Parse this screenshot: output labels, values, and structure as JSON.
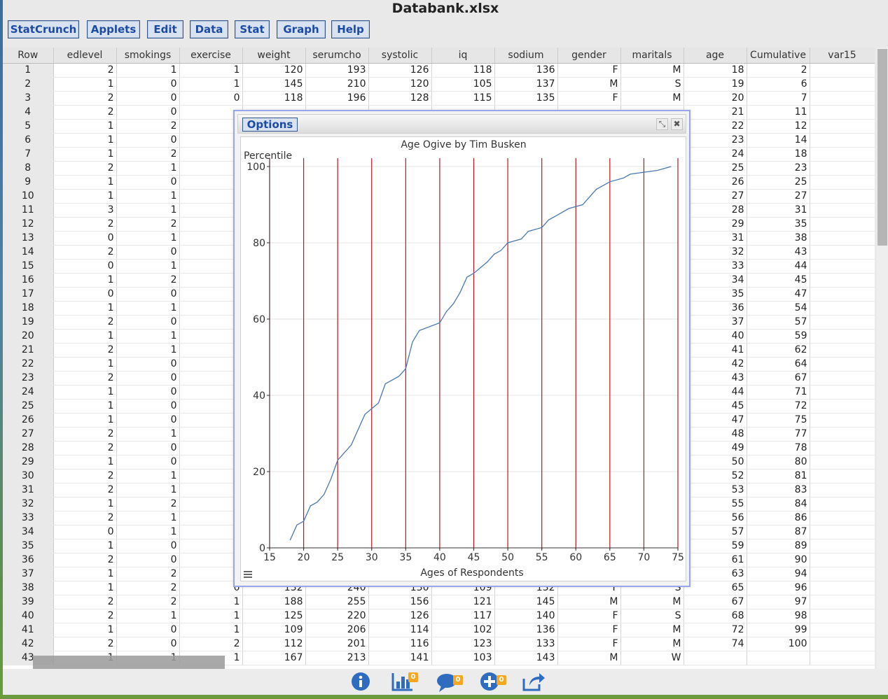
{
  "window": {
    "title": "Databank.xlsx"
  },
  "menu": [
    "StatCrunch",
    "Applets",
    "Edit",
    "Data",
    "Stat",
    "Graph",
    "Help"
  ],
  "columns": [
    "Row",
    "edlevel",
    "smokings",
    "exercise",
    "weight",
    "serumcho",
    "systolic",
    "iq",
    "sodium",
    "gender",
    "maritals",
    "age",
    "Cumulative",
    "var15"
  ],
  "rows": [
    [
      "1",
      "2",
      "1",
      "1",
      "120",
      "193",
      "126",
      "118",
      "136",
      "F",
      "M",
      "18",
      "2",
      ""
    ],
    [
      "2",
      "1",
      "0",
      "1",
      "145",
      "210",
      "120",
      "105",
      "137",
      "M",
      "S",
      "19",
      "6",
      ""
    ],
    [
      "3",
      "2",
      "0",
      "0",
      "118",
      "196",
      "128",
      "115",
      "135",
      "F",
      "M",
      "20",
      "7",
      ""
    ],
    [
      "4",
      "2",
      "0",
      "",
      "",
      "",
      "",
      "",
      "",
      "",
      "",
      "21",
      "11",
      ""
    ],
    [
      "5",
      "1",
      "2",
      "",
      "",
      "",
      "",
      "",
      "",
      "",
      "",
      "22",
      "12",
      ""
    ],
    [
      "6",
      "1",
      "0",
      "",
      "",
      "",
      "",
      "",
      "",
      "",
      "",
      "23",
      "14",
      ""
    ],
    [
      "7",
      "1",
      "2",
      "",
      "",
      "",
      "",
      "",
      "",
      "",
      "",
      "24",
      "18",
      ""
    ],
    [
      "8",
      "2",
      "1",
      "",
      "",
      "",
      "",
      "",
      "",
      "",
      "",
      "25",
      "23",
      ""
    ],
    [
      "9",
      "1",
      "0",
      "",
      "",
      "",
      "",
      "",
      "",
      "",
      "",
      "26",
      "25",
      ""
    ],
    [
      "10",
      "1",
      "1",
      "",
      "",
      "",
      "",
      "",
      "",
      "",
      "",
      "27",
      "27",
      ""
    ],
    [
      "11",
      "3",
      "1",
      "",
      "",
      "",
      "",
      "",
      "",
      "",
      "",
      "28",
      "31",
      ""
    ],
    [
      "12",
      "2",
      "2",
      "",
      "",
      "",
      "",
      "",
      "",
      "",
      "",
      "29",
      "35",
      ""
    ],
    [
      "13",
      "0",
      "1",
      "",
      "",
      "",
      "",
      "",
      "",
      "",
      "",
      "31",
      "38",
      ""
    ],
    [
      "14",
      "2",
      "0",
      "",
      "",
      "",
      "",
      "",
      "",
      "",
      "",
      "32",
      "43",
      ""
    ],
    [
      "15",
      "0",
      "1",
      "",
      "",
      "",
      "",
      "",
      "",
      "",
      "",
      "33",
      "44",
      ""
    ],
    [
      "16",
      "1",
      "2",
      "",
      "",
      "",
      "",
      "",
      "",
      "",
      "",
      "34",
      "45",
      ""
    ],
    [
      "17",
      "0",
      "0",
      "",
      "",
      "",
      "",
      "",
      "",
      "",
      "",
      "35",
      "47",
      ""
    ],
    [
      "18",
      "1",
      "1",
      "",
      "",
      "",
      "",
      "",
      "",
      "",
      "",
      "36",
      "54",
      ""
    ],
    [
      "19",
      "2",
      "0",
      "",
      "",
      "",
      "",
      "",
      "",
      "",
      "",
      "37",
      "57",
      ""
    ],
    [
      "20",
      "1",
      "1",
      "",
      "",
      "",
      "",
      "",
      "",
      "",
      "",
      "40",
      "59",
      ""
    ],
    [
      "21",
      "2",
      "1",
      "",
      "",
      "",
      "",
      "",
      "",
      "",
      "",
      "41",
      "62",
      ""
    ],
    [
      "22",
      "1",
      "0",
      "",
      "",
      "",
      "",
      "",
      "",
      "",
      "",
      "42",
      "64",
      ""
    ],
    [
      "23",
      "2",
      "0",
      "",
      "",
      "",
      "",
      "",
      "",
      "",
      "",
      "43",
      "67",
      ""
    ],
    [
      "24",
      "1",
      "0",
      "",
      "",
      "",
      "",
      "",
      "",
      "",
      "",
      "44",
      "71",
      ""
    ],
    [
      "25",
      "1",
      "0",
      "",
      "",
      "",
      "",
      "",
      "",
      "",
      "",
      "45",
      "72",
      ""
    ],
    [
      "26",
      "1",
      "0",
      "",
      "",
      "",
      "",
      "",
      "",
      "",
      "",
      "47",
      "75",
      ""
    ],
    [
      "27",
      "2",
      "1",
      "",
      "",
      "",
      "",
      "",
      "",
      "",
      "",
      "48",
      "77",
      ""
    ],
    [
      "28",
      "2",
      "0",
      "",
      "",
      "",
      "",
      "",
      "",
      "",
      "",
      "49",
      "78",
      ""
    ],
    [
      "29",
      "1",
      "0",
      "",
      "",
      "",
      "",
      "",
      "",
      "",
      "",
      "50",
      "80",
      ""
    ],
    [
      "30",
      "2",
      "1",
      "",
      "",
      "",
      "",
      "",
      "",
      "",
      "",
      "52",
      "81",
      ""
    ],
    [
      "31",
      "2",
      "1",
      "",
      "",
      "",
      "",
      "",
      "",
      "",
      "",
      "53",
      "83",
      ""
    ],
    [
      "32",
      "1",
      "2",
      "",
      "",
      "",
      "",
      "",
      "",
      "",
      "",
      "55",
      "84",
      ""
    ],
    [
      "33",
      "2",
      "1",
      "",
      "",
      "",
      "",
      "",
      "",
      "",
      "",
      "56",
      "86",
      ""
    ],
    [
      "34",
      "0",
      "1",
      "",
      "",
      "",
      "",
      "",
      "",
      "",
      "",
      "57",
      "87",
      ""
    ],
    [
      "35",
      "1",
      "0",
      "",
      "",
      "",
      "",
      "",
      "",
      "",
      "",
      "59",
      "89",
      ""
    ],
    [
      "36",
      "2",
      "0",
      "",
      "",
      "",
      "",
      "",
      "",
      "",
      "",
      "61",
      "90",
      ""
    ],
    [
      "37",
      "1",
      "2",
      "",
      "",
      "",
      "",
      "",
      "",
      "",
      "",
      "63",
      "94",
      ""
    ],
    [
      "38",
      "1",
      "2",
      "0",
      "132",
      "240",
      "130",
      "109",
      "132",
      "F",
      "S",
      "65",
      "96",
      ""
    ],
    [
      "39",
      "2",
      "2",
      "1",
      "188",
      "255",
      "156",
      "121",
      "145",
      "M",
      "M",
      "67",
      "97",
      ""
    ],
    [
      "40",
      "2",
      "1",
      "1",
      "125",
      "220",
      "126",
      "117",
      "140",
      "F",
      "S",
      "68",
      "98",
      ""
    ],
    [
      "41",
      "1",
      "0",
      "1",
      "109",
      "206",
      "114",
      "102",
      "136",
      "F",
      "M",
      "72",
      "99",
      ""
    ],
    [
      "42",
      "2",
      "0",
      "2",
      "112",
      "201",
      "116",
      "123",
      "133",
      "F",
      "M",
      "74",
      "100",
      ""
    ],
    [
      "43",
      "1",
      "1",
      "1",
      "167",
      "213",
      "141",
      "103",
      "143",
      "M",
      "W",
      "",
      "",
      ""
    ]
  ],
  "dialog": {
    "options_label": "Options",
    "expand_glyph": "⤡",
    "close_glyph": "✖"
  },
  "bottombar": {
    "icons": [
      "info-icon",
      "bar-chart-icon",
      "comment-icon",
      "add-icon",
      "share-icon"
    ],
    "badges": [
      "0",
      "0",
      "0"
    ]
  },
  "colors": {
    "accent": "#1d4aa3",
    "line": "#4a78b0",
    "vline": "#c0141e",
    "dialog_border": "#9aa6e8"
  },
  "chart_data": {
    "type": "line",
    "title": "Age Ogive by Tim Busken",
    "xlabel": "Ages of Respondents",
    "ylabel": "Percentile",
    "xlim": [
      15,
      75
    ],
    "ylim": [
      0,
      100
    ],
    "xticks": [
      15,
      20,
      25,
      30,
      35,
      40,
      45,
      50,
      55,
      60,
      65,
      70,
      75
    ],
    "yticks": [
      0,
      20,
      40,
      60,
      80,
      100
    ],
    "vertical_lines": [
      15,
      20,
      25,
      30,
      35,
      40,
      45,
      50,
      55,
      60,
      65,
      70,
      75
    ],
    "grid": true,
    "series": [
      {
        "x": [
          18,
          19,
          20,
          21,
          22,
          23,
          24,
          25,
          26,
          27,
          28,
          29,
          31,
          32,
          33,
          34,
          35,
          36,
          37,
          40,
          41,
          42,
          43,
          44,
          45,
          47,
          48,
          49,
          50,
          52,
          53,
          55,
          56,
          57,
          59,
          61,
          63,
          65,
          67,
          68,
          72,
          74
        ],
        "y": [
          2,
          6,
          7,
          11,
          12,
          14,
          18,
          23,
          25,
          27,
          31,
          35,
          38,
          43,
          44,
          45,
          47,
          54,
          57,
          59,
          62,
          64,
          67,
          71,
          72,
          75,
          77,
          78,
          80,
          81,
          83,
          84,
          86,
          87,
          89,
          90,
          94,
          96,
          97,
          98,
          99,
          100
        ]
      }
    ]
  }
}
